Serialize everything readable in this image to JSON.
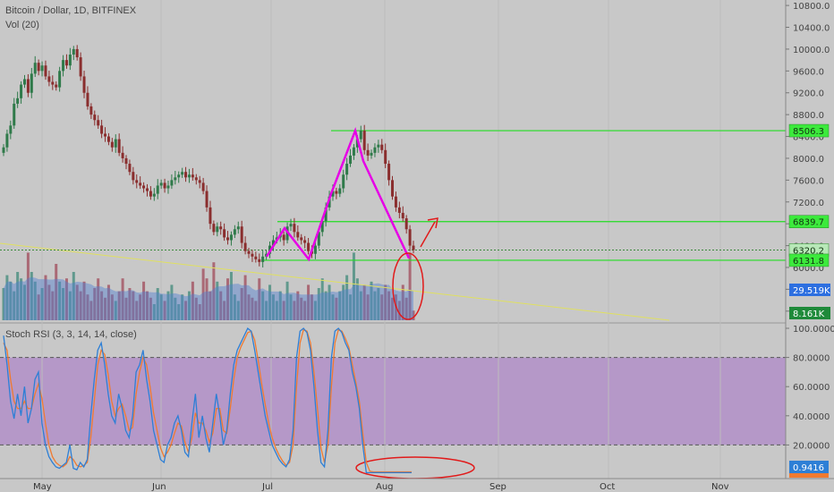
{
  "header": {
    "symbol_title": "Bitcoin / Dollar, 1D, BITFINEX",
    "volume_label": "Vol (20)",
    "rsi_label": "Stoch RSI (3, 3, 14, 14, close)"
  },
  "colors": {
    "background": "#c8c8c8",
    "rsi_band": "#b28fc8",
    "candle_up": "#2f7a4a",
    "candle_down": "#8a2e2e",
    "pattern": "#e600e6",
    "level_line": "#22dd22",
    "trend_line": "#e0e060",
    "annotation": "#e11a1a",
    "stoch_k": "#2d7fd6",
    "stoch_d": "#f07a30"
  },
  "chart_data": {
    "type": "candlestick",
    "price_axis": {
      "ticks": [
        "10800.0",
        "10400.0",
        "10000.0",
        "9600.0",
        "9200.0",
        "8800.0",
        "8400.0",
        "8000.0",
        "7600.0",
        "7200.0",
        "6800.0",
        "6400.0",
        "6000.0",
        "5600.0",
        "5200.0"
      ],
      "tick_values": [
        10800,
        10400,
        10000,
        9600,
        9200,
        8800,
        8400,
        8000,
        7600,
        7200,
        6800,
        6400,
        6000,
        5600,
        5200
      ],
      "range": [
        5000,
        10900
      ]
    },
    "price_labels": [
      {
        "text": "8506.3",
        "value": 8506.3,
        "style": "level"
      },
      {
        "text": "6839.7",
        "value": 6839.7,
        "style": "level"
      },
      {
        "text": "6320.2",
        "value": 6320.2,
        "style": "last"
      },
      {
        "text": "6131.8",
        "value": 6131.8,
        "style": "level"
      }
    ],
    "volume_labels": [
      {
        "text": "29.519K",
        "style": "avg"
      },
      {
        "text": "8.161K",
        "style": "vol"
      }
    ],
    "rsi_axis": {
      "ticks": [
        "100.0000",
        "80.0000",
        "60.0000",
        "40.0000",
        "20.0000"
      ],
      "tick_values": [
        100,
        80,
        60,
        40,
        20
      ],
      "range": [
        0,
        100
      ],
      "band": [
        20,
        80
      ]
    },
    "rsi_label_value": {
      "text": "0.9416",
      "value": 0.9416
    },
    "x_axis": {
      "labels": [
        "May",
        "Jun",
        "Jul",
        "Aug",
        "Sep",
        "Oct",
        "Nov"
      ]
    },
    "horizontal_levels": [
      8506.3,
      6839.7,
      6131.8
    ],
    "closes": [
      8200,
      8450,
      8600,
      9000,
      9100,
      9350,
      9450,
      9200,
      9550,
      9750,
      9600,
      9700,
      9500,
      9400,
      9350,
      9300,
      9600,
      9800,
      9700,
      9900,
      10000,
      9850,
      9500,
      9200,
      8950,
      8800,
      8700,
      8600,
      8450,
      8400,
      8300,
      8200,
      8350,
      8100,
      8000,
      7900,
      7750,
      7600,
      7550,
      7500,
      7450,
      7400,
      7300,
      7350,
      7500,
      7550,
      7450,
      7500,
      7600,
      7650,
      7700,
      7750,
      7650,
      7700,
      7650,
      7600,
      7550,
      7400,
      7100,
      6800,
      6650,
      6750,
      6700,
      6550,
      6500,
      6600,
      6700,
      6750,
      6450,
      6300,
      6250,
      6200,
      6150,
      6100,
      6200,
      6250,
      6400,
      6500,
      6550,
      6600,
      6500,
      6750,
      6800,
      6650,
      6550,
      6500,
      6450,
      6300,
      6250,
      6400,
      6650,
      6850,
      7100,
      7300,
      7400,
      7350,
      7450,
      7700,
      7900,
      8050,
      8200,
      8350,
      8506,
      8150,
      8050,
      8100,
      8200,
      8250,
      8150,
      7900,
      7600,
      7300,
      7100,
      7000,
      6900,
      6700,
      6400,
      6320
    ],
    "volumes": [
      2.0,
      2.8,
      2.4,
      1.8,
      3.0,
      2.6,
      2.2,
      4.2,
      3.0,
      2.4,
      1.6,
      2.0,
      2.8,
      2.2,
      1.8,
      3.5,
      2.4,
      2.0,
      2.6,
      1.8,
      3.0,
      2.2,
      1.8,
      2.4,
      1.6,
      1.2,
      2.0,
      2.6,
      1.8,
      1.4,
      2.2,
      1.6,
      1.2,
      1.8,
      2.6,
      1.4,
      2.0,
      1.8,
      1.2,
      1.6,
      2.4,
      1.8,
      1.4,
      1.0,
      2.0,
      1.6,
      1.2,
      1.8,
      2.2,
      1.4,
      1.0,
      1.6,
      1.2,
      1.8,
      2.4,
      1.4,
      1.0,
      3.2,
      2.6,
      1.8,
      3.6,
      2.4,
      1.8,
      1.2,
      2.6,
      3.0,
      1.6,
      1.2,
      2.0,
      2.8,
      1.6,
      1.4,
      1.2,
      2.6,
      1.8,
      1.2,
      2.2,
      1.6,
      1.2,
      1.8,
      1.2,
      2.4,
      1.6,
      1.2,
      1.8,
      1.4,
      1.2,
      2.2,
      1.6,
      1.2,
      2.0,
      2.6,
      1.8,
      2.2,
      1.6,
      1.4,
      1.8,
      2.2,
      2.8,
      1.6,
      4.2,
      2.6,
      1.8,
      2.2,
      1.6,
      2.4,
      1.8,
      2.0,
      1.6,
      2.2,
      1.8,
      1.4,
      1.6,
      1.2,
      2.2,
      1.4,
      4.2,
      0.6
    ],
    "stoch_k": [
      95,
      75,
      50,
      38,
      55,
      40,
      60,
      35,
      45,
      65,
      70,
      35,
      20,
      12,
      8,
      5,
      4,
      6,
      8,
      20,
      4,
      3,
      8,
      5,
      10,
      40,
      65,
      85,
      90,
      75,
      55,
      40,
      35,
      55,
      45,
      30,
      25,
      40,
      70,
      75,
      85,
      65,
      50,
      30,
      20,
      10,
      8,
      20,
      25,
      35,
      40,
      30,
      15,
      12,
      35,
      55,
      25,
      40,
      25,
      15,
      35,
      55,
      40,
      20,
      30,
      55,
      75,
      85,
      90,
      95,
      100,
      98,
      85,
      70,
      55,
      40,
      30,
      20,
      15,
      10,
      7,
      5,
      10,
      30,
      80,
      98,
      100,
      97,
      85,
      60,
      30,
      8,
      5,
      30,
      80,
      98,
      100,
      97,
      90,
      85,
      70,
      60,
      45,
      20,
      1,
      1,
      1,
      1,
      1,
      1,
      1,
      1,
      1,
      1,
      1,
      1,
      1,
      1
    ],
    "stoch_d": [
      90,
      85,
      65,
      50,
      45,
      45,
      50,
      45,
      45,
      55,
      62,
      52,
      35,
      20,
      12,
      8,
      6,
      5,
      7,
      12,
      10,
      6,
      5,
      6,
      8,
      25,
      50,
      75,
      85,
      82,
      68,
      50,
      40,
      45,
      48,
      40,
      30,
      32,
      55,
      70,
      80,
      75,
      60,
      42,
      30,
      18,
      12,
      15,
      20,
      28,
      35,
      33,
      22,
      15,
      25,
      42,
      35,
      35,
      30,
      22,
      28,
      45,
      45,
      30,
      28,
      45,
      65,
      80,
      87,
      92,
      97,
      98,
      92,
      78,
      62,
      48,
      35,
      25,
      18,
      13,
      9,
      6,
      8,
      20,
      60,
      90,
      99,
      98,
      90,
      70,
      45,
      18,
      8,
      20,
      60,
      90,
      99,
      98,
      93,
      87,
      75,
      63,
      50,
      28,
      8,
      2,
      1.5,
      1.5,
      1.5,
      1.5,
      1.5,
      1.5,
      1.5,
      1.5,
      1.5,
      1.5,
      1.5,
      1.5
    ]
  }
}
